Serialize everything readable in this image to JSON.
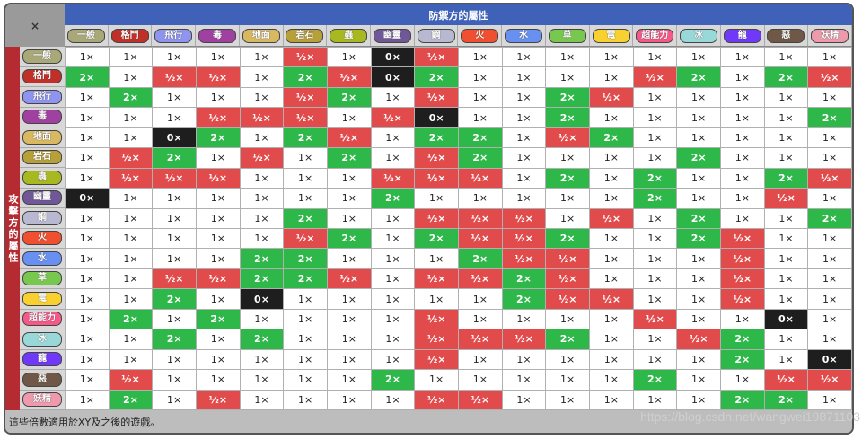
{
  "corner_mark": "×",
  "header": {
    "defending": "防禦方的屬性",
    "attacking": "攻擊方的屬性"
  },
  "types": [
    {
      "label": "一般",
      "color": "#a8a878"
    },
    {
      "label": "格鬥",
      "color": "#c03028"
    },
    {
      "label": "飛行",
      "color": "#8e94f0"
    },
    {
      "label": "毒",
      "color": "#a040a0"
    },
    {
      "label": "地面",
      "color": "#d8b860"
    },
    {
      "label": "岩石",
      "color": "#b8a038"
    },
    {
      "label": "蟲",
      "color": "#a8b820"
    },
    {
      "label": "幽靈",
      "color": "#705898"
    },
    {
      "label": "鋼",
      "color": "#b8b8d0"
    },
    {
      "label": "火",
      "color": "#f05030"
    },
    {
      "label": "水",
      "color": "#6890f0"
    },
    {
      "label": "草",
      "color": "#78c850"
    },
    {
      "label": "電",
      "color": "#f8d030"
    },
    {
      "label": "超能力",
      "color": "#f85888"
    },
    {
      "label": "冰",
      "color": "#98d8d8"
    },
    {
      "label": "龍",
      "color": "#7038f8"
    },
    {
      "label": "惡",
      "color": "#705848"
    },
    {
      "label": "妖精",
      "color": "#ee99ac"
    }
  ],
  "colors": {
    "super": "#2eb84a",
    "half": "#e14b4b",
    "zero": "#1e1e1e",
    "normal": "#ffffff"
  },
  "chart_data": {
    "type": "table",
    "matrix": [
      [
        "1",
        "1",
        "1",
        "1",
        "1",
        "h",
        "1",
        "0",
        "h",
        "1",
        "1",
        "1",
        "1",
        "1",
        "1",
        "1",
        "1",
        "1"
      ],
      [
        "2",
        "1",
        "h",
        "h",
        "1",
        "2",
        "h",
        "0",
        "2",
        "1",
        "1",
        "1",
        "1",
        "h",
        "2",
        "1",
        "2",
        "h"
      ],
      [
        "1",
        "2",
        "1",
        "1",
        "1",
        "h",
        "2",
        "1",
        "h",
        "1",
        "1",
        "2",
        "h",
        "1",
        "1",
        "1",
        "1",
        "1"
      ],
      [
        "1",
        "1",
        "1",
        "h",
        "h",
        "h",
        "1",
        "h",
        "0",
        "1",
        "1",
        "2",
        "1",
        "1",
        "1",
        "1",
        "1",
        "2"
      ],
      [
        "1",
        "1",
        "0",
        "2",
        "1",
        "2",
        "h",
        "1",
        "2",
        "2",
        "1",
        "h",
        "2",
        "1",
        "1",
        "1",
        "1",
        "1"
      ],
      [
        "1",
        "h",
        "2",
        "1",
        "h",
        "1",
        "2",
        "1",
        "h",
        "2",
        "1",
        "1",
        "1",
        "1",
        "2",
        "1",
        "1",
        "1"
      ],
      [
        "1",
        "h",
        "h",
        "h",
        "1",
        "1",
        "1",
        "h",
        "h",
        "h",
        "1",
        "2",
        "1",
        "2",
        "1",
        "1",
        "2",
        "h"
      ],
      [
        "0",
        "1",
        "1",
        "1",
        "1",
        "1",
        "1",
        "2",
        "1",
        "1",
        "1",
        "1",
        "1",
        "2",
        "1",
        "1",
        "h",
        "1"
      ],
      [
        "1",
        "1",
        "1",
        "1",
        "1",
        "2",
        "1",
        "1",
        "h",
        "h",
        "h",
        "1",
        "h",
        "1",
        "2",
        "1",
        "1",
        "2"
      ],
      [
        "1",
        "1",
        "1",
        "1",
        "1",
        "h",
        "2",
        "1",
        "2",
        "h",
        "h",
        "2",
        "1",
        "1",
        "2",
        "h",
        "1",
        "1"
      ],
      [
        "1",
        "1",
        "1",
        "1",
        "2",
        "2",
        "1",
        "1",
        "1",
        "2",
        "h",
        "h",
        "1",
        "1",
        "1",
        "h",
        "1",
        "1"
      ],
      [
        "1",
        "1",
        "h",
        "h",
        "2",
        "2",
        "h",
        "1",
        "h",
        "h",
        "2",
        "h",
        "1",
        "1",
        "1",
        "h",
        "1",
        "1"
      ],
      [
        "1",
        "1",
        "2",
        "1",
        "0",
        "1",
        "1",
        "1",
        "1",
        "1",
        "2",
        "h",
        "h",
        "1",
        "1",
        "h",
        "1",
        "1"
      ],
      [
        "1",
        "2",
        "1",
        "2",
        "1",
        "1",
        "1",
        "1",
        "h",
        "1",
        "1",
        "1",
        "1",
        "h",
        "1",
        "1",
        "0",
        "1"
      ],
      [
        "1",
        "1",
        "2",
        "1",
        "2",
        "1",
        "1",
        "1",
        "h",
        "h",
        "h",
        "2",
        "1",
        "1",
        "h",
        "2",
        "1",
        "1"
      ],
      [
        "1",
        "1",
        "1",
        "1",
        "1",
        "1",
        "1",
        "1",
        "h",
        "1",
        "1",
        "1",
        "1",
        "1",
        "1",
        "2",
        "1",
        "0"
      ],
      [
        "1",
        "h",
        "1",
        "1",
        "1",
        "1",
        "1",
        "2",
        "1",
        "1",
        "1",
        "1",
        "1",
        "2",
        "1",
        "1",
        "h",
        "h"
      ],
      [
        "1",
        "2",
        "1",
        "h",
        "1",
        "1",
        "1",
        "1",
        "h",
        "h",
        "1",
        "1",
        "1",
        "1",
        "1",
        "2",
        "2",
        "1"
      ]
    ],
    "legend": {
      "1": "1×",
      "2": "2×",
      "h": "½×",
      "0": "0×"
    }
  },
  "footer_note": "這些倍數適用於XY及之後的遊戲。",
  "watermark": "https://blog.csdn.net/wangwei19871103"
}
